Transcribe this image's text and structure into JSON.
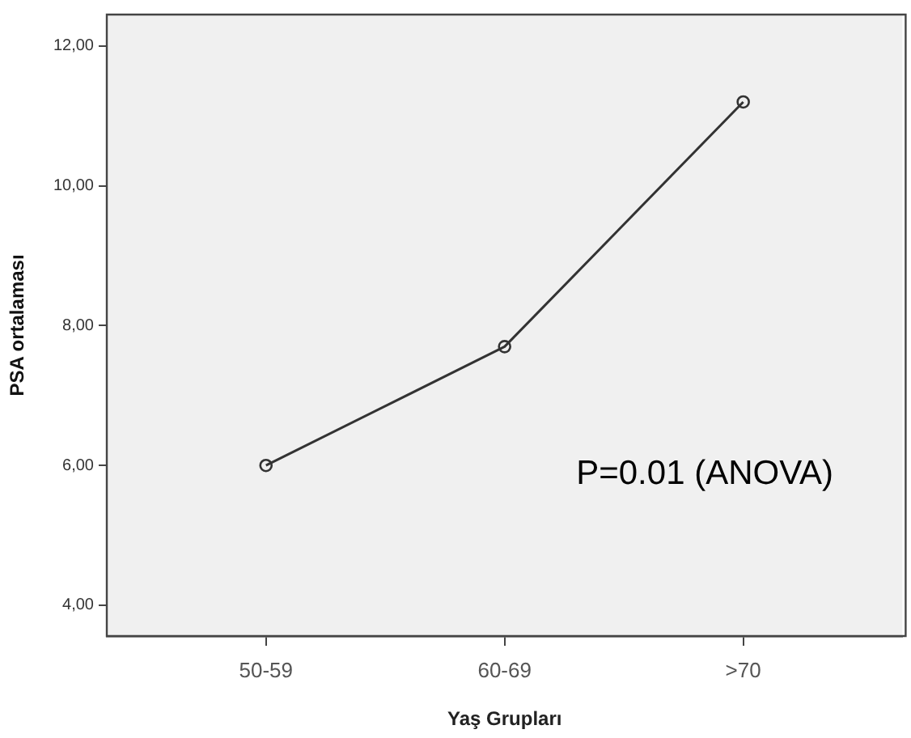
{
  "chart_data": {
    "type": "line",
    "xlabel": "Yaş Grupları",
    "ylabel": "PSA ortalaması",
    "categories": [
      "50-59",
      "60-69",
      ">70"
    ],
    "series": [
      {
        "color": "#333333",
        "values": [
          6.0,
          7.7,
          11.2
        ]
      }
    ],
    "ylim": [
      3.56,
      12.45
    ],
    "yticks": [
      {
        "value": 4,
        "label": "4,00"
      },
      {
        "value": 6,
        "label": "6,00"
      },
      {
        "value": 8,
        "label": "8,00"
      },
      {
        "value": 10,
        "label": "10,00"
      },
      {
        "value": 12,
        "label": "12,00"
      }
    ],
    "annotations": [
      "P=0.01 (ANOVA)"
    ],
    "marker": "circle",
    "line_style": "solid",
    "grid": false,
    "legend": false
  }
}
